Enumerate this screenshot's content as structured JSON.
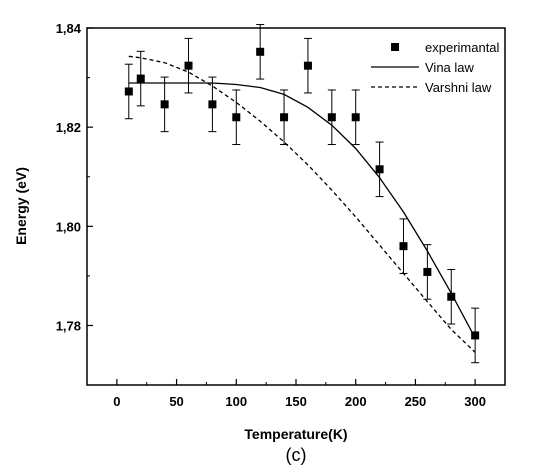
{
  "chart_data": {
    "type": "scatter",
    "xlabel": "Temperature(K)",
    "ylabel": "Energy (eV)",
    "panel_label": "(c)",
    "xlim": [
      -25,
      325
    ],
    "ylim": [
      1.768,
      1.84
    ],
    "x_ticks": [
      {
        "value": 0,
        "label": "0"
      },
      {
        "value": 50,
        "label": "50"
      },
      {
        "value": 100,
        "label": "100"
      },
      {
        "value": 150,
        "label": "150"
      },
      {
        "value": 200,
        "label": "200"
      },
      {
        "value": 250,
        "label": "250"
      },
      {
        "value": 300,
        "label": "300"
      }
    ],
    "y_ticks": [
      {
        "value": 1.78,
        "label": "1,78"
      },
      {
        "value": 1.8,
        "label": "1,80"
      },
      {
        "value": 1.82,
        "label": "1,82"
      },
      {
        "value": 1.84,
        "label": "1,84"
      }
    ],
    "legend_position": "top-right",
    "series": [
      {
        "name": "experimantal",
        "style": "square-markers-with-error-bars",
        "color": "#000000",
        "points": [
          {
            "x": 10,
            "y": 1.8272,
            "err": 0.0055
          },
          {
            "x": 20,
            "y": 1.8298,
            "err": 0.0055
          },
          {
            "x": 40,
            "y": 1.8246,
            "err": 0.0055
          },
          {
            "x": 60,
            "y": 1.8324,
            "err": 0.0055
          },
          {
            "x": 80,
            "y": 1.8246,
            "err": 0.0055
          },
          {
            "x": 100,
            "y": 1.822,
            "err": 0.0055
          },
          {
            "x": 120,
            "y": 1.8352,
            "err": 0.0055
          },
          {
            "x": 140,
            "y": 1.822,
            "err": 0.0055
          },
          {
            "x": 160,
            "y": 1.8324,
            "err": 0.0055
          },
          {
            "x": 180,
            "y": 1.822,
            "err": 0.0055
          },
          {
            "x": 200,
            "y": 1.822,
            "err": 0.0055
          },
          {
            "x": 220,
            "y": 1.8115,
            "err": 0.0055
          },
          {
            "x": 240,
            "y": 1.796,
            "err": 0.0055
          },
          {
            "x": 260,
            "y": 1.7908,
            "err": 0.0055
          },
          {
            "x": 280,
            "y": 1.7858,
            "err": 0.0055
          },
          {
            "x": 300,
            "y": 1.778,
            "err": 0.0055
          }
        ]
      },
      {
        "name": "Vina law",
        "style": "solid-line",
        "color": "#000000",
        "points": [
          {
            "x": 10,
            "y": 1.8289
          },
          {
            "x": 40,
            "y": 1.8289
          },
          {
            "x": 80,
            "y": 1.8289
          },
          {
            "x": 100,
            "y": 1.8286
          },
          {
            "x": 120,
            "y": 1.828
          },
          {
            "x": 140,
            "y": 1.8266
          },
          {
            "x": 160,
            "y": 1.824
          },
          {
            "x": 180,
            "y": 1.8204
          },
          {
            "x": 200,
            "y": 1.8157
          },
          {
            "x": 220,
            "y": 1.8098
          },
          {
            "x": 240,
            "y": 1.8029
          },
          {
            "x": 260,
            "y": 1.795
          },
          {
            "x": 280,
            "y": 1.7865
          },
          {
            "x": 300,
            "y": 1.7775
          }
        ]
      },
      {
        "name": "Varshni law",
        "style": "dashed-line",
        "color": "#000000",
        "points": [
          {
            "x": 10,
            "y": 1.8343
          },
          {
            "x": 20,
            "y": 1.834
          },
          {
            "x": 40,
            "y": 1.833
          },
          {
            "x": 60,
            "y": 1.8311
          },
          {
            "x": 80,
            "y": 1.8283
          },
          {
            "x": 100,
            "y": 1.825
          },
          {
            "x": 120,
            "y": 1.8212
          },
          {
            "x": 140,
            "y": 1.817
          },
          {
            "x": 160,
            "y": 1.8124
          },
          {
            "x": 180,
            "y": 1.8073
          },
          {
            "x": 200,
            "y": 1.8019
          },
          {
            "x": 220,
            "y": 1.7962
          },
          {
            "x": 240,
            "y": 1.7905
          },
          {
            "x": 260,
            "y": 1.7848
          },
          {
            "x": 280,
            "y": 1.7792
          },
          {
            "x": 300,
            "y": 1.7746
          }
        ]
      }
    ]
  }
}
